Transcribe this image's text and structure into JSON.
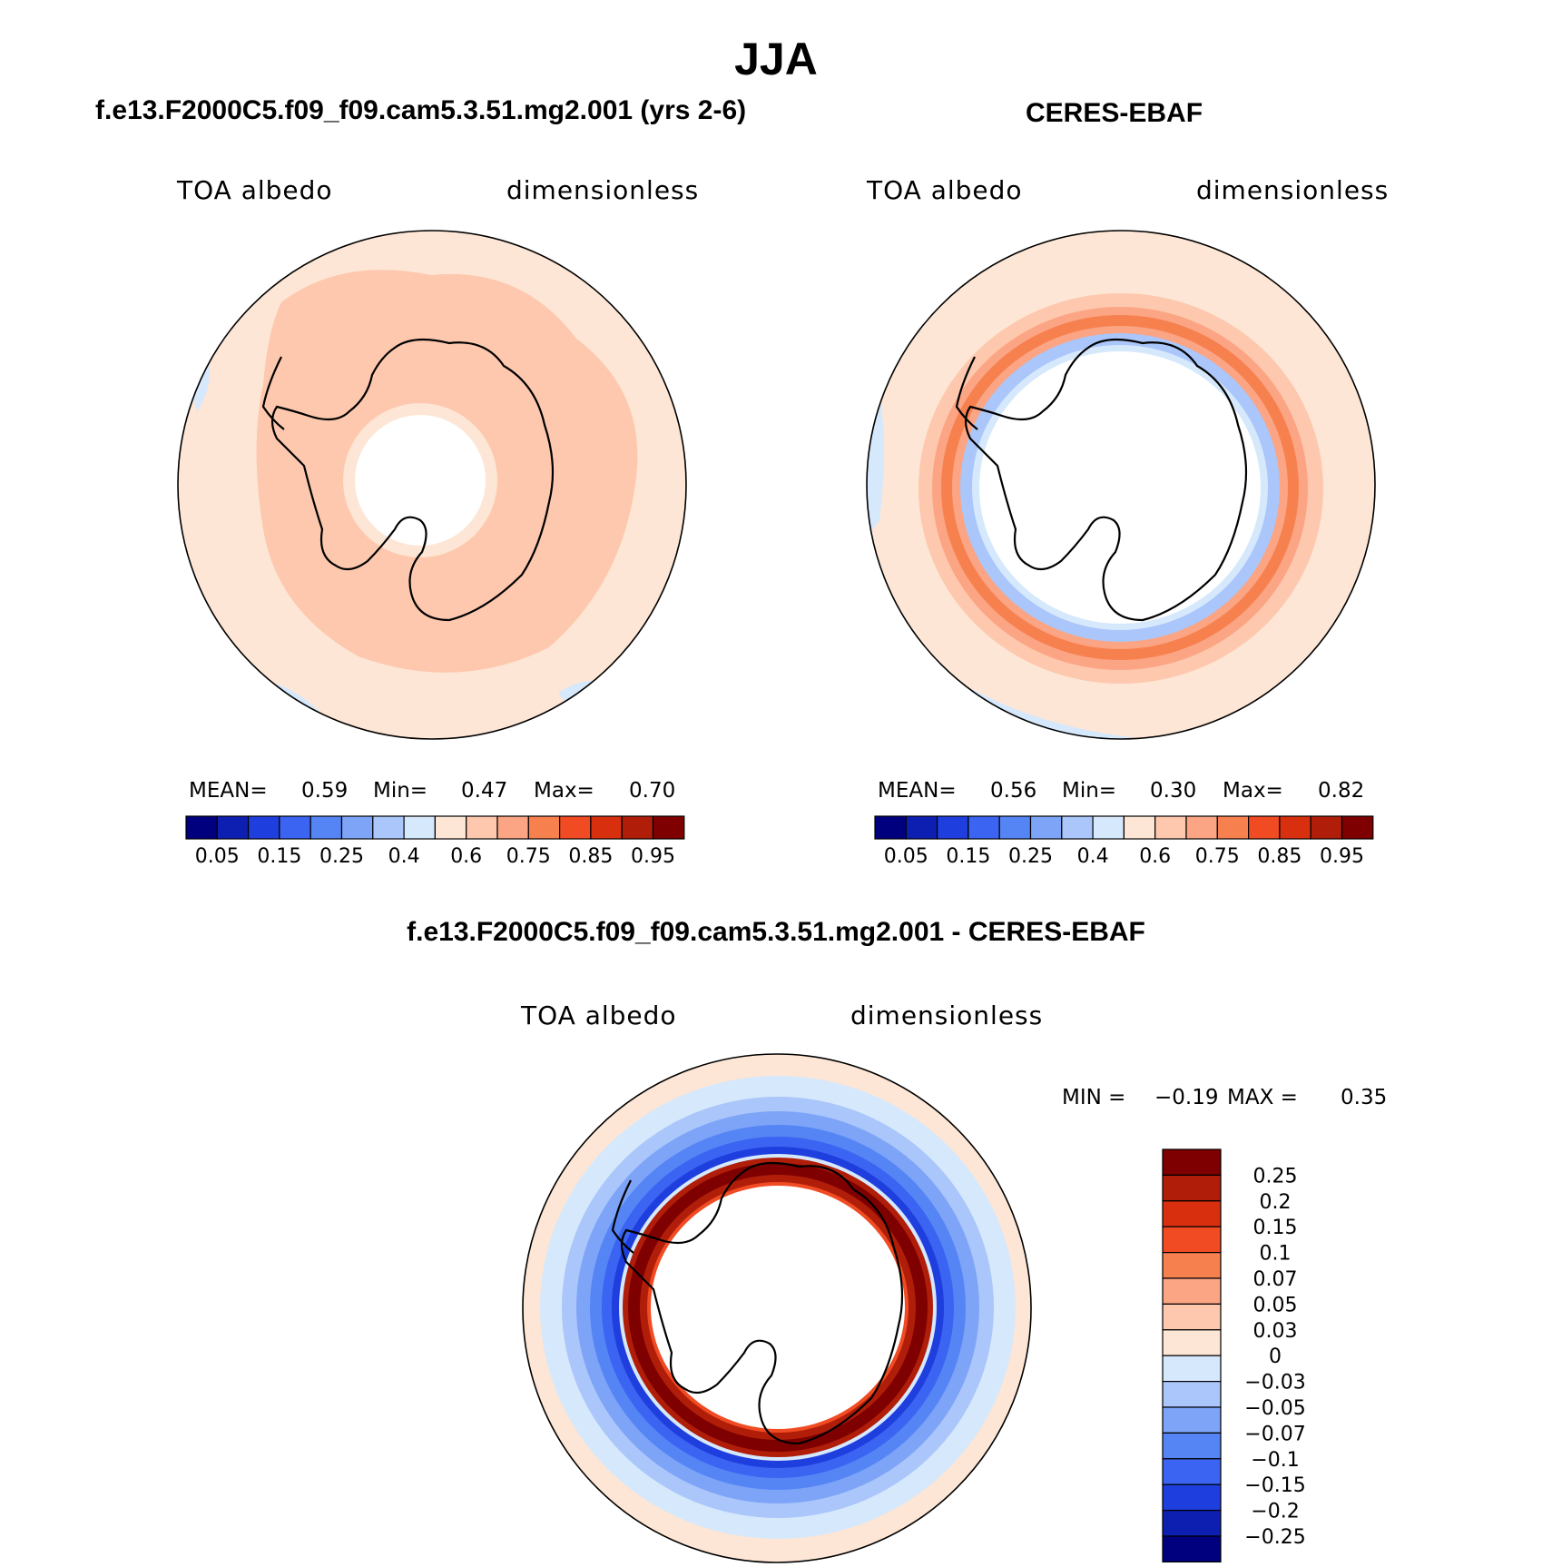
{
  "main_title": "JJA",
  "panels": {
    "model": {
      "title": "f.e13.F2000C5.f09_f09.cam5.3.51.mg2.001 (yrs 2-6)",
      "variable": "TOA albedo",
      "units": "dimensionless",
      "mean_label": "MEAN=",
      "mean_value": "0.59",
      "min_label": "Min=",
      "min_value": "0.47",
      "max_label": "Max=",
      "max_value": "0.70"
    },
    "obs": {
      "title": "CERES-EBAF",
      "variable": "TOA albedo",
      "units": "dimensionless",
      "mean_label": "MEAN=",
      "mean_value": "0.56",
      "min_label": "Min=",
      "min_value": "0.30",
      "max_label": "Max=",
      "max_value": "0.82"
    },
    "diff": {
      "title": "f.e13.F2000C5.f09_f09.cam5.3.51.mg2.001 - CERES-EBAF",
      "variable": "TOA albedo",
      "units": "dimensionless",
      "min_label": "MIN =",
      "min_value": "−0.19",
      "max_label": "MAX =",
      "max_value": "0.35"
    }
  },
  "chart_data": [
    {
      "type": "heatmap",
      "projection": "south-polar-stereographic",
      "title": "f.e13.F2000C5.f09_f09.cam5.3.51.mg2.001 (yrs 2-6)",
      "variable": "TOA albedo",
      "units": "dimensionless",
      "mean": 0.59,
      "min": 0.47,
      "max": 0.7,
      "colorbar": {
        "orientation": "horizontal",
        "tick_labels": [
          "0.05",
          "0.15",
          "0.25",
          "0.4",
          "0.6",
          "0.75",
          "0.85",
          "0.95"
        ],
        "colors": [
          "#00007f",
          "#0c1fb0",
          "#1f3ede",
          "#3a64f1",
          "#5585f5",
          "#7ea4f8",
          "#aac6fa",
          "#d6e8fc",
          "#fde6d5",
          "#fdc8ae",
          "#fba584",
          "#f7804f",
          "#f04b23",
          "#d8300f",
          "#b01e0a",
          "#7f0000"
        ]
      }
    },
    {
      "type": "heatmap",
      "projection": "south-polar-stereographic",
      "title": "CERES-EBAF",
      "variable": "TOA albedo",
      "units": "dimensionless",
      "mean": 0.56,
      "min": 0.3,
      "max": 0.82,
      "colorbar": {
        "orientation": "horizontal",
        "tick_labels": [
          "0.05",
          "0.15",
          "0.25",
          "0.4",
          "0.6",
          "0.75",
          "0.85",
          "0.95"
        ],
        "colors": [
          "#00007f",
          "#0c1fb0",
          "#1f3ede",
          "#3a64f1",
          "#5585f5",
          "#7ea4f8",
          "#aac6fa",
          "#d6e8fc",
          "#fde6d5",
          "#fdc8ae",
          "#fba584",
          "#f7804f",
          "#f04b23",
          "#d8300f",
          "#b01e0a",
          "#7f0000"
        ]
      }
    },
    {
      "type": "heatmap",
      "projection": "south-polar-stereographic",
      "title": "f.e13.F2000C5.f09_f09.cam5.3.51.mg2.001 - CERES-EBAF",
      "variable": "TOA albedo",
      "units": "dimensionless",
      "min": -0.19,
      "max": 0.35,
      "colorbar": {
        "orientation": "vertical",
        "tick_labels": [
          "0.25",
          "0.2",
          "0.15",
          "0.1",
          "0.07",
          "0.05",
          "0.03",
          "0",
          "−0.03",
          "−0.05",
          "−0.07",
          "−0.1",
          "−0.15",
          "−0.2",
          "−0.25"
        ],
        "colors": [
          "#7f0000",
          "#b01e0a",
          "#d8300f",
          "#f04b23",
          "#f7804f",
          "#fba584",
          "#fdc8ae",
          "#fde6d5",
          "#d6e8fc",
          "#aac6fa",
          "#7ea4f8",
          "#5585f5",
          "#3a64f1",
          "#1f3ede",
          "#0c1fb0",
          "#00007f"
        ]
      }
    }
  ]
}
